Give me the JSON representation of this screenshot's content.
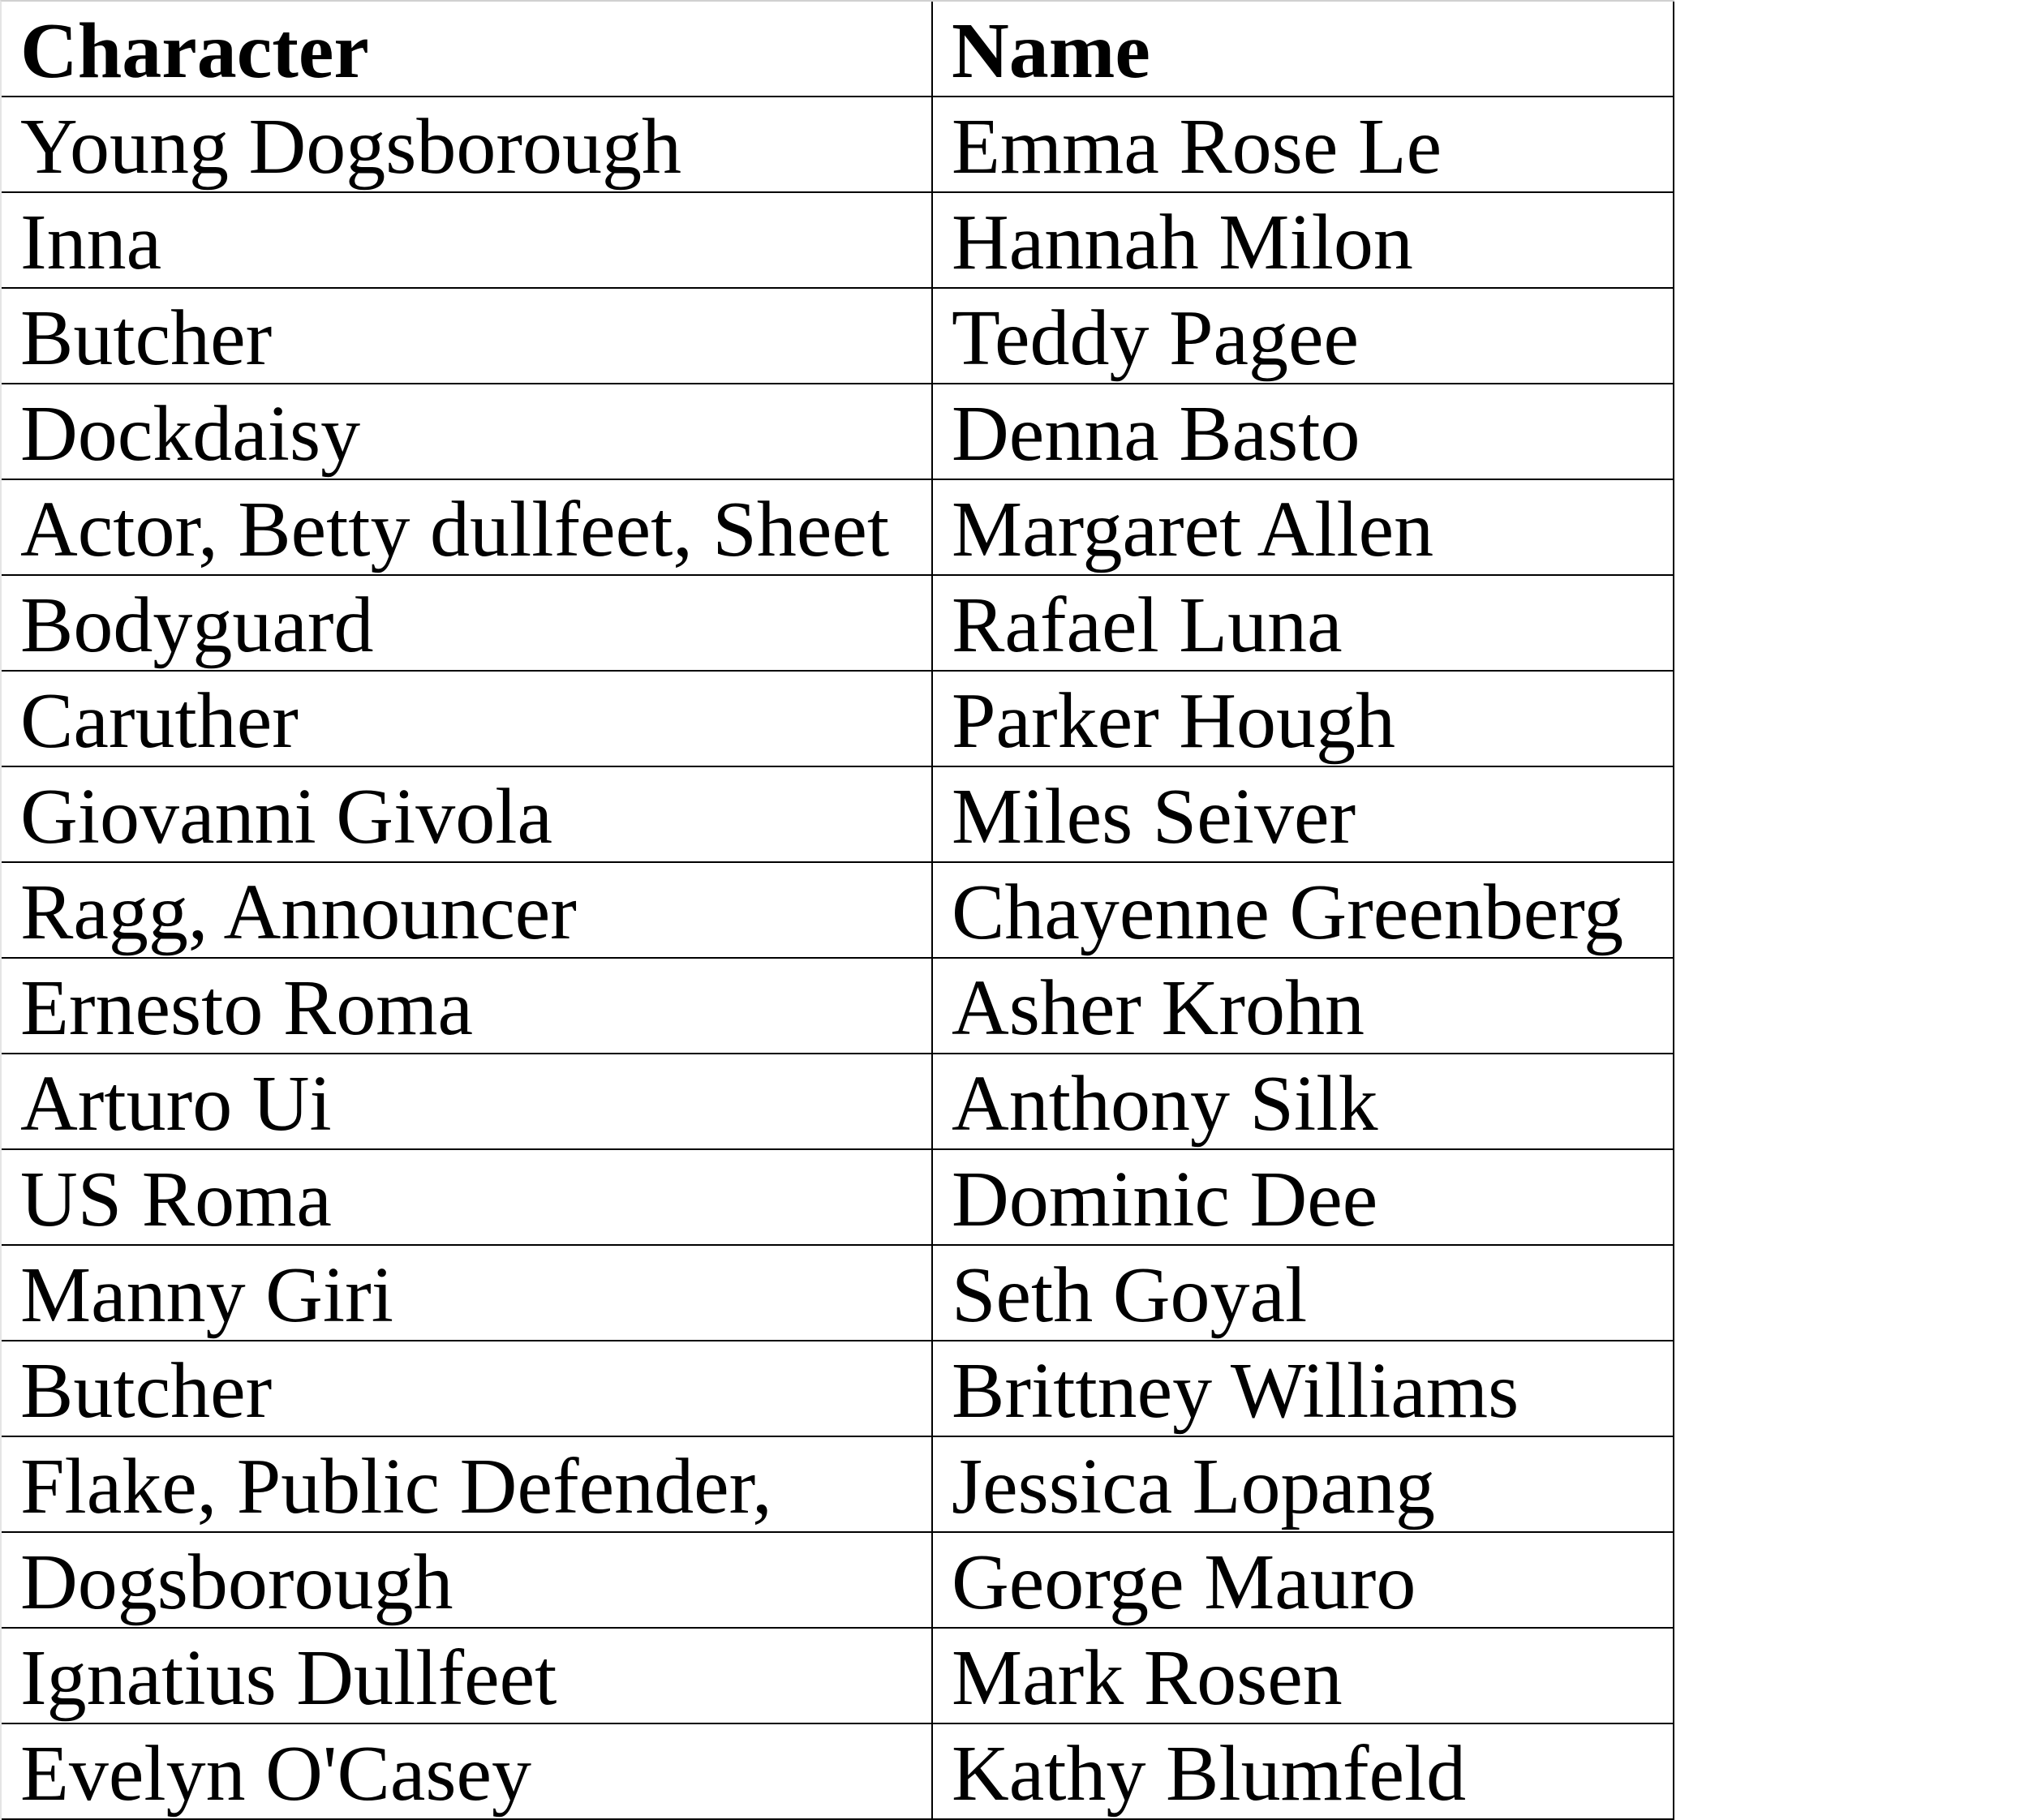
{
  "page": {
    "background_color": "#ffffff",
    "text_color": "#000000"
  },
  "table": {
    "grid_color": "#000000",
    "outer_top_border_color": "#d0d0d0",
    "outer_left_border_color": "#e4e4e4",
    "headers": {
      "character": "Character",
      "name": "Name"
    },
    "rows": [
      {
        "character": "Young Dogsborough",
        "name": "Emma Rose Le"
      },
      {
        "character": "Inna",
        "name": "Hannah Milon"
      },
      {
        "character": "Butcher",
        "name": "Teddy Pagee"
      },
      {
        "character": "Dockdaisy",
        "name": "Denna Basto"
      },
      {
        "character": "Actor, Betty dullfeet, Sheet",
        "name": "Margaret Allen"
      },
      {
        "character": "Bodyguard",
        "name": "Rafael Luna"
      },
      {
        "character": "Caruther",
        "name": "Parker Hough"
      },
      {
        "character": "Giovanni Givola",
        "name": "Miles Seiver"
      },
      {
        "character": "Ragg, Announcer",
        "name": "Chayenne Greenberg"
      },
      {
        "character": "Ernesto Roma",
        "name": "Asher Krohn"
      },
      {
        "character": "Arturo Ui",
        "name": "Anthony Silk"
      },
      {
        "character": "US Roma",
        "name": "Dominic Dee"
      },
      {
        "character": "Manny Giri",
        "name": "Seth Goyal"
      },
      {
        "character": "Butcher",
        "name": "Brittney Williams"
      },
      {
        "character": "Flake, Public Defender,",
        "name": "Jessica Lopang"
      },
      {
        "character": "Dogsborough",
        "name": "George Mauro"
      },
      {
        "character": "Ignatius Dullfeet",
        "name": "Mark Rosen"
      },
      {
        "character": "Evelyn O'Casey",
        "name": "Kathy Blumfeld"
      }
    ]
  }
}
